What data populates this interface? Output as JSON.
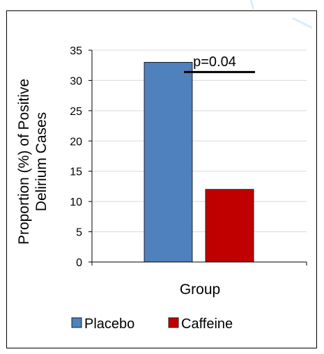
{
  "chart_data": {
    "type": "bar",
    "categories": [
      "Placebo",
      "Caffeine"
    ],
    "values": [
      33,
      12
    ],
    "colors": [
      "#4f81bd",
      "#c00000"
    ],
    "title": "",
    "xlabel": "Group",
    "ylabel_lines": [
      "Proportion (%) of Positive",
      "Delirium Cases"
    ],
    "ylim": [
      0,
      35
    ],
    "yticks": [
      0,
      5,
      10,
      15,
      20,
      25,
      30,
      35
    ],
    "grid": true,
    "legend": {
      "placement": "bottom",
      "entries": [
        "Placebo",
        "Caffeine"
      ]
    },
    "annotation": {
      "text": "p=0.04"
    }
  }
}
